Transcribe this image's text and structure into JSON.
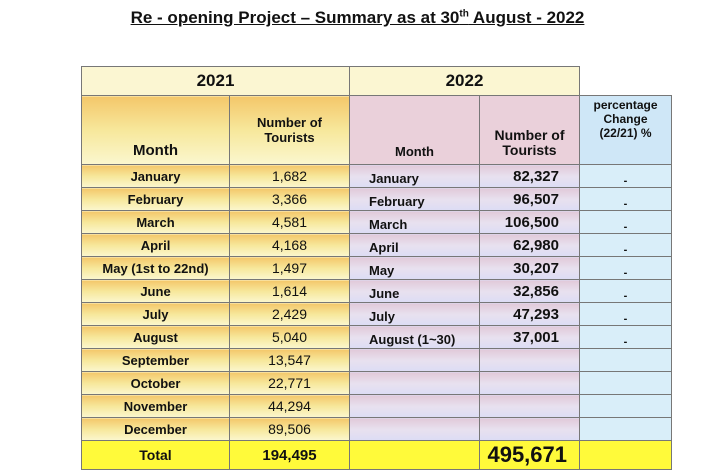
{
  "title": {
    "text": "Re - opening Project – Summary as at 30",
    "sup": "th",
    "tail": " August - 2022"
  },
  "years": {
    "y2021": "2021",
    "y2022": "2022"
  },
  "headers": {
    "month_2021": "Month",
    "tourists_2021_line1": "Number of",
    "tourists_2021_line2": "Tourists",
    "month_2022": "Month",
    "tourists_2022_line1": "Number of",
    "tourists_2022_line2": "Tourists",
    "pct_line1": "percentage",
    "pct_line2": "Change",
    "pct_line3": "(22/21) %"
  },
  "rows": [
    {
      "m21": "January",
      "v21": "1,682",
      "m22": "January",
      "v22": "82,327",
      "pc": "-"
    },
    {
      "m21": "February",
      "v21": "3,366",
      "m22": "February",
      "v22": "96,507",
      "pc": "-"
    },
    {
      "m21": "March",
      "v21": "4,581",
      "m22": "March",
      "v22": "106,500",
      "pc": "-"
    },
    {
      "m21": "April",
      "v21": "4,168",
      "m22": "April",
      "v22": "62,980",
      "pc": "-"
    },
    {
      "m21": "May (1st to 22nd)",
      "v21": "1,497",
      "m22": "May",
      "v22": "30,207",
      "pc": "-"
    },
    {
      "m21": "June",
      "v21": "1,614",
      "m22": "June",
      "v22": "32,856",
      "pc": "-"
    },
    {
      "m21": "July",
      "v21": "2,429",
      "m22": "July",
      "v22": "47,293",
      "pc": "-"
    },
    {
      "m21": "August",
      "v21": "5,040",
      "m22": "August (1~30)",
      "v22": "37,001",
      "pc": "-"
    },
    {
      "m21": "September",
      "v21": "13,547",
      "m22": "",
      "v22": "",
      "pc": ""
    },
    {
      "m21": "October",
      "v21": "22,771",
      "m22": "",
      "v22": "",
      "pc": ""
    },
    {
      "m21": "November",
      "v21": "44,294",
      "m22": "",
      "v22": "",
      "pc": ""
    },
    {
      "m21": "December",
      "v21": "89,506",
      "m22": "",
      "v22": "",
      "pc": ""
    }
  ],
  "total": {
    "label": "Total",
    "v21": "194,495",
    "v22": "495,671"
  },
  "colors": {
    "year_2021_fill": "#f4c76a",
    "year_2022_fill": "#dcdcf5",
    "pct_fill": "#d9eef9",
    "total_fill": "#fffa3a"
  }
}
